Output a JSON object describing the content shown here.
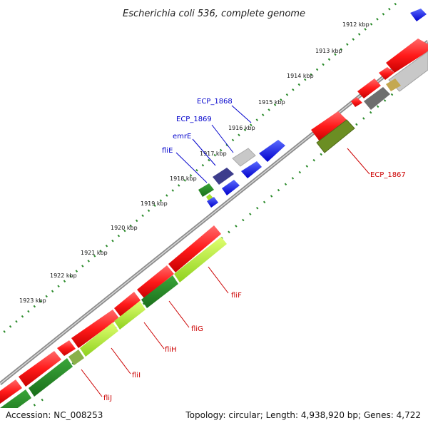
{
  "title": "Escherichia coli 536, complete genome",
  "footer": {
    "accession": "Accession: NC_008253",
    "topology": "Topology: circular; Length: 4,938,920 bp; Genes: 4,722"
  },
  "kbp_labels": [
    "1912 kbp",
    "1913 kbp",
    "1914 kbp",
    "1915 kbp",
    "1916 kbp",
    "1917 kbp",
    "1918 kbp",
    "1919 kbp",
    "1920 kbp",
    "1921 kbp",
    "1922 kbp",
    "1923 kbp"
  ],
  "gene_labels": {
    "ecp1868": "ECP_1868",
    "ecp1869": "ECP_1869",
    "emre": "emrE",
    "flie": "fliE",
    "ecp1867": "ECP_1867",
    "flif": "fliF",
    "flig": "fliG",
    "flih": "fliH",
    "flii": "fliI",
    "flij": "fliJ"
  },
  "colors": {
    "blue_label": "#0000cc",
    "red_label": "#cc0000",
    "forward_gene": "#ff0000",
    "small_gene": "#0000ff",
    "cog_green": "#228b22",
    "cog_lightgreen": "#adff2f",
    "cog_olive": "#6b8e23",
    "backbone": "#8c8c8c",
    "dots": "#2a8a2a"
  }
}
